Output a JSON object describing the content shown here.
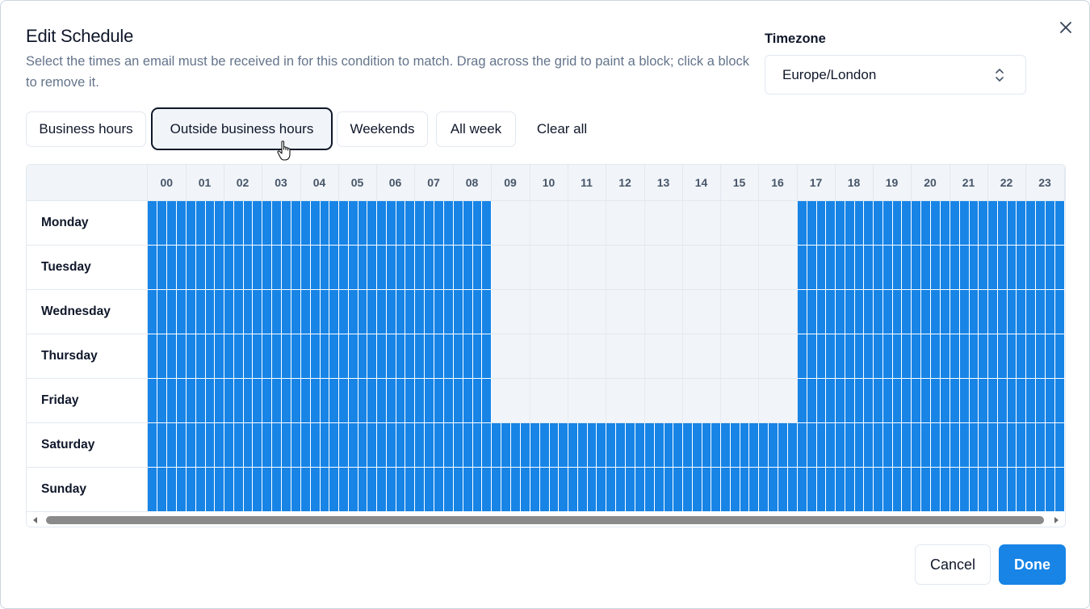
{
  "dialog": {
    "title": "Edit Schedule",
    "description": "Select the times an email must be received in for this condition to match. Drag across the grid to paint a block; click a block to remove it.",
    "close_icon": "close-icon"
  },
  "timezone": {
    "label": "Timezone",
    "value": "Europe/London",
    "icon": "chevron-up-down-icon"
  },
  "presets": [
    {
      "label": "Business hours",
      "active": false
    },
    {
      "label": "Outside business hours",
      "active": true
    },
    {
      "label": "Weekends",
      "active": false
    },
    {
      "label": "All week",
      "active": false
    },
    {
      "label": "Clear all",
      "active": false
    }
  ],
  "grid": {
    "hours": [
      "00",
      "01",
      "02",
      "03",
      "04",
      "05",
      "06",
      "07",
      "08",
      "09",
      "10",
      "11",
      "12",
      "13",
      "14",
      "15",
      "16",
      "17",
      "18",
      "19",
      "20",
      "21",
      "22",
      "23"
    ],
    "days": [
      {
        "name": "Monday",
        "selected_ranges": [
          [
            0,
            9
          ],
          [
            17,
            24
          ]
        ]
      },
      {
        "name": "Tuesday",
        "selected_ranges": [
          [
            0,
            9
          ],
          [
            17,
            24
          ]
        ]
      },
      {
        "name": "Wednesday",
        "selected_ranges": [
          [
            0,
            9
          ],
          [
            17,
            24
          ]
        ]
      },
      {
        "name": "Thursday",
        "selected_ranges": [
          [
            0,
            9
          ],
          [
            17,
            24
          ]
        ]
      },
      {
        "name": "Friday",
        "selected_ranges": [
          [
            0,
            9
          ],
          [
            17,
            24
          ]
        ]
      },
      {
        "name": "Saturday",
        "selected_ranges": [
          [
            0,
            24
          ]
        ]
      },
      {
        "name": "Sunday",
        "selected_ranges": [
          [
            0,
            24
          ]
        ]
      }
    ],
    "slots_per_hour": 4,
    "selected_color": "#1784e6",
    "empty_color": "#f1f5f9"
  },
  "footer": {
    "cancel_label": "Cancel",
    "done_label": "Done"
  },
  "colors": {
    "accent": "#1784e6",
    "text": "#0f172a",
    "muted": "#64748b"
  }
}
